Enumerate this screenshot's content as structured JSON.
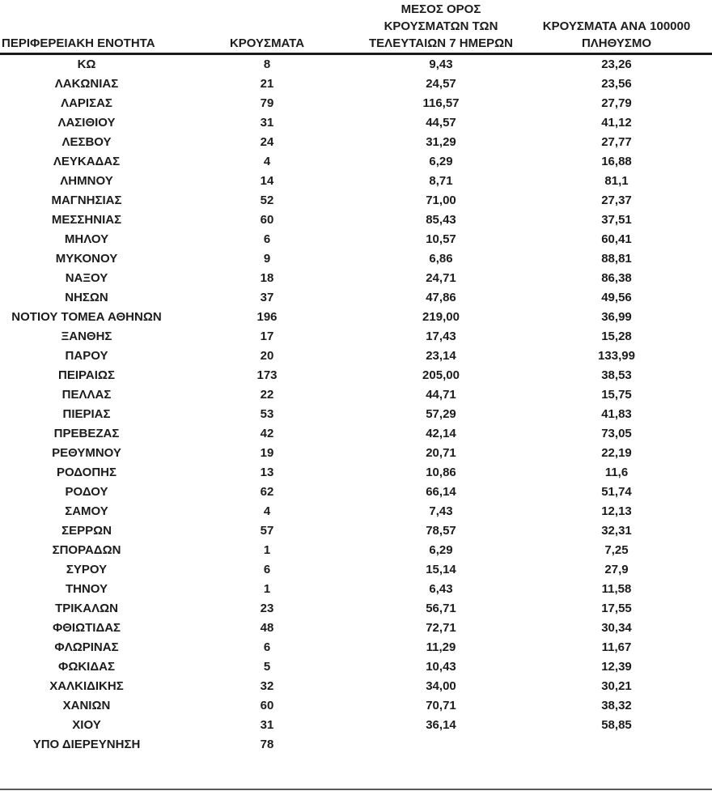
{
  "table": {
    "header": {
      "col_region": "ΠΕΡΙΦΕΡΕΙΑΚΗ ΕΝΟΤΗΤΑ",
      "col_cases": "ΚΡΟΥΣΜΑΤΑ",
      "col_avg7_lines": [
        "ΜΕΣΟΣ ΟΡΟΣ",
        "ΚΡΟΥΣΜΑΤΩΝ ΤΩΝ",
        "ΤΕΛΕΥΤΑΙΩΝ 7 ΗΜΕΡΩΝ"
      ],
      "col_per100k_lines": [
        "ΚΡΟΥΣΜΑΤΑ ΑΝΑ 100000",
        "ΠΛΗΘΥΣΜΟ"
      ]
    },
    "rows": [
      {
        "region": "ΚΩ",
        "cases": "8",
        "avg_7day": "9,43",
        "per_100k": "23,26"
      },
      {
        "region": "ΛΑΚΩΝΙΑΣ",
        "cases": "21",
        "avg_7day": "24,57",
        "per_100k": "23,56"
      },
      {
        "region": "ΛΑΡΙΣΑΣ",
        "cases": "79",
        "avg_7day": "116,57",
        "per_100k": "27,79"
      },
      {
        "region": "ΛΑΣΙΘΙΟΥ",
        "cases": "31",
        "avg_7day": "44,57",
        "per_100k": "41,12"
      },
      {
        "region": "ΛΕΣΒΟΥ",
        "cases": "24",
        "avg_7day": "31,29",
        "per_100k": "27,77"
      },
      {
        "region": "ΛΕΥΚΑΔΑΣ",
        "cases": "4",
        "avg_7day": "6,29",
        "per_100k": "16,88"
      },
      {
        "region": "ΛΗΜΝΟΥ",
        "cases": "14",
        "avg_7day": "8,71",
        "per_100k": "81,1"
      },
      {
        "region": "ΜΑΓΝΗΣΙΑΣ",
        "cases": "52",
        "avg_7day": "71,00",
        "per_100k": "27,37"
      },
      {
        "region": "ΜΕΣΣΗΝΙΑΣ",
        "cases": "60",
        "avg_7day": "85,43",
        "per_100k": "37,51"
      },
      {
        "region": "ΜΗΛΟΥ",
        "cases": "6",
        "avg_7day": "10,57",
        "per_100k": "60,41"
      },
      {
        "region": "ΜΥΚΟΝΟΥ",
        "cases": "9",
        "avg_7day": "6,86",
        "per_100k": "88,81"
      },
      {
        "region": "ΝΑΞΟΥ",
        "cases": "18",
        "avg_7day": "24,71",
        "per_100k": "86,38"
      },
      {
        "region": "ΝΗΣΩΝ",
        "cases": "37",
        "avg_7day": "47,86",
        "per_100k": "49,56"
      },
      {
        "region": "ΝΟΤΙΟΥ ΤΟΜΕΑ ΑΘΗΝΩΝ",
        "cases": "196",
        "avg_7day": "219,00",
        "per_100k": "36,99"
      },
      {
        "region": "ΞΑΝΘΗΣ",
        "cases": "17",
        "avg_7day": "17,43",
        "per_100k": "15,28"
      },
      {
        "region": "ΠΑΡΟΥ",
        "cases": "20",
        "avg_7day": "23,14",
        "per_100k": "133,99"
      },
      {
        "region": "ΠΕΙΡΑΙΩΣ",
        "cases": "173",
        "avg_7day": "205,00",
        "per_100k": "38,53"
      },
      {
        "region": "ΠΕΛΛΑΣ",
        "cases": "22",
        "avg_7day": "44,71",
        "per_100k": "15,75"
      },
      {
        "region": "ΠΙΕΡΙΑΣ",
        "cases": "53",
        "avg_7day": "57,29",
        "per_100k": "41,83"
      },
      {
        "region": "ΠΡΕΒΕΖΑΣ",
        "cases": "42",
        "avg_7day": "42,14",
        "per_100k": "73,05"
      },
      {
        "region": "ΡΕΘΥΜΝΟΥ",
        "cases": "19",
        "avg_7day": "20,71",
        "per_100k": "22,19"
      },
      {
        "region": "ΡΟΔΟΠΗΣ",
        "cases": "13",
        "avg_7day": "10,86",
        "per_100k": "11,6"
      },
      {
        "region": "ΡΟΔΟΥ",
        "cases": "62",
        "avg_7day": "66,14",
        "per_100k": "51,74"
      },
      {
        "region": "ΣΑΜΟΥ",
        "cases": "4",
        "avg_7day": "7,43",
        "per_100k": "12,13"
      },
      {
        "region": "ΣΕΡΡΩΝ",
        "cases": "57",
        "avg_7day": "78,57",
        "per_100k": "32,31"
      },
      {
        "region": "ΣΠΟΡΑΔΩΝ",
        "cases": "1",
        "avg_7day": "6,29",
        "per_100k": "7,25"
      },
      {
        "region": "ΣΥΡΟΥ",
        "cases": "6",
        "avg_7day": "15,14",
        "per_100k": "27,9"
      },
      {
        "region": "ΤΗΝΟΥ",
        "cases": "1",
        "avg_7day": "6,43",
        "per_100k": "11,58"
      },
      {
        "region": "ΤΡΙΚΑΛΩΝ",
        "cases": "23",
        "avg_7day": "56,71",
        "per_100k": "17,55"
      },
      {
        "region": "ΦΘΙΩΤΙΔΑΣ",
        "cases": "48",
        "avg_7day": "72,71",
        "per_100k": "30,34"
      },
      {
        "region": "ΦΛΩΡΙΝΑΣ",
        "cases": "6",
        "avg_7day": "11,29",
        "per_100k": "11,67"
      },
      {
        "region": "ΦΩΚΙΔΑΣ",
        "cases": "5",
        "avg_7day": "10,43",
        "per_100k": "12,39"
      },
      {
        "region": "ΧΑΛΚΙΔΙΚΗΣ",
        "cases": "32",
        "avg_7day": "34,00",
        "per_100k": "30,21"
      },
      {
        "region": "ΧΑΝΙΩΝ",
        "cases": "60",
        "avg_7day": "70,71",
        "per_100k": "38,32"
      },
      {
        "region": "ΧΙΟΥ",
        "cases": "31",
        "avg_7day": "36,14",
        "per_100k": "58,85"
      },
      {
        "region": "ΥΠΟ ΔΙΕΡΕΥΝΗΣΗ",
        "cases": "78",
        "avg_7day": "",
        "per_100k": ""
      }
    ]
  },
  "colors": {
    "text": "#1c1c1c",
    "header_rule": "#1a1a1a",
    "bottom_rule": "#5a5a5a",
    "background": "#ffffff"
  }
}
